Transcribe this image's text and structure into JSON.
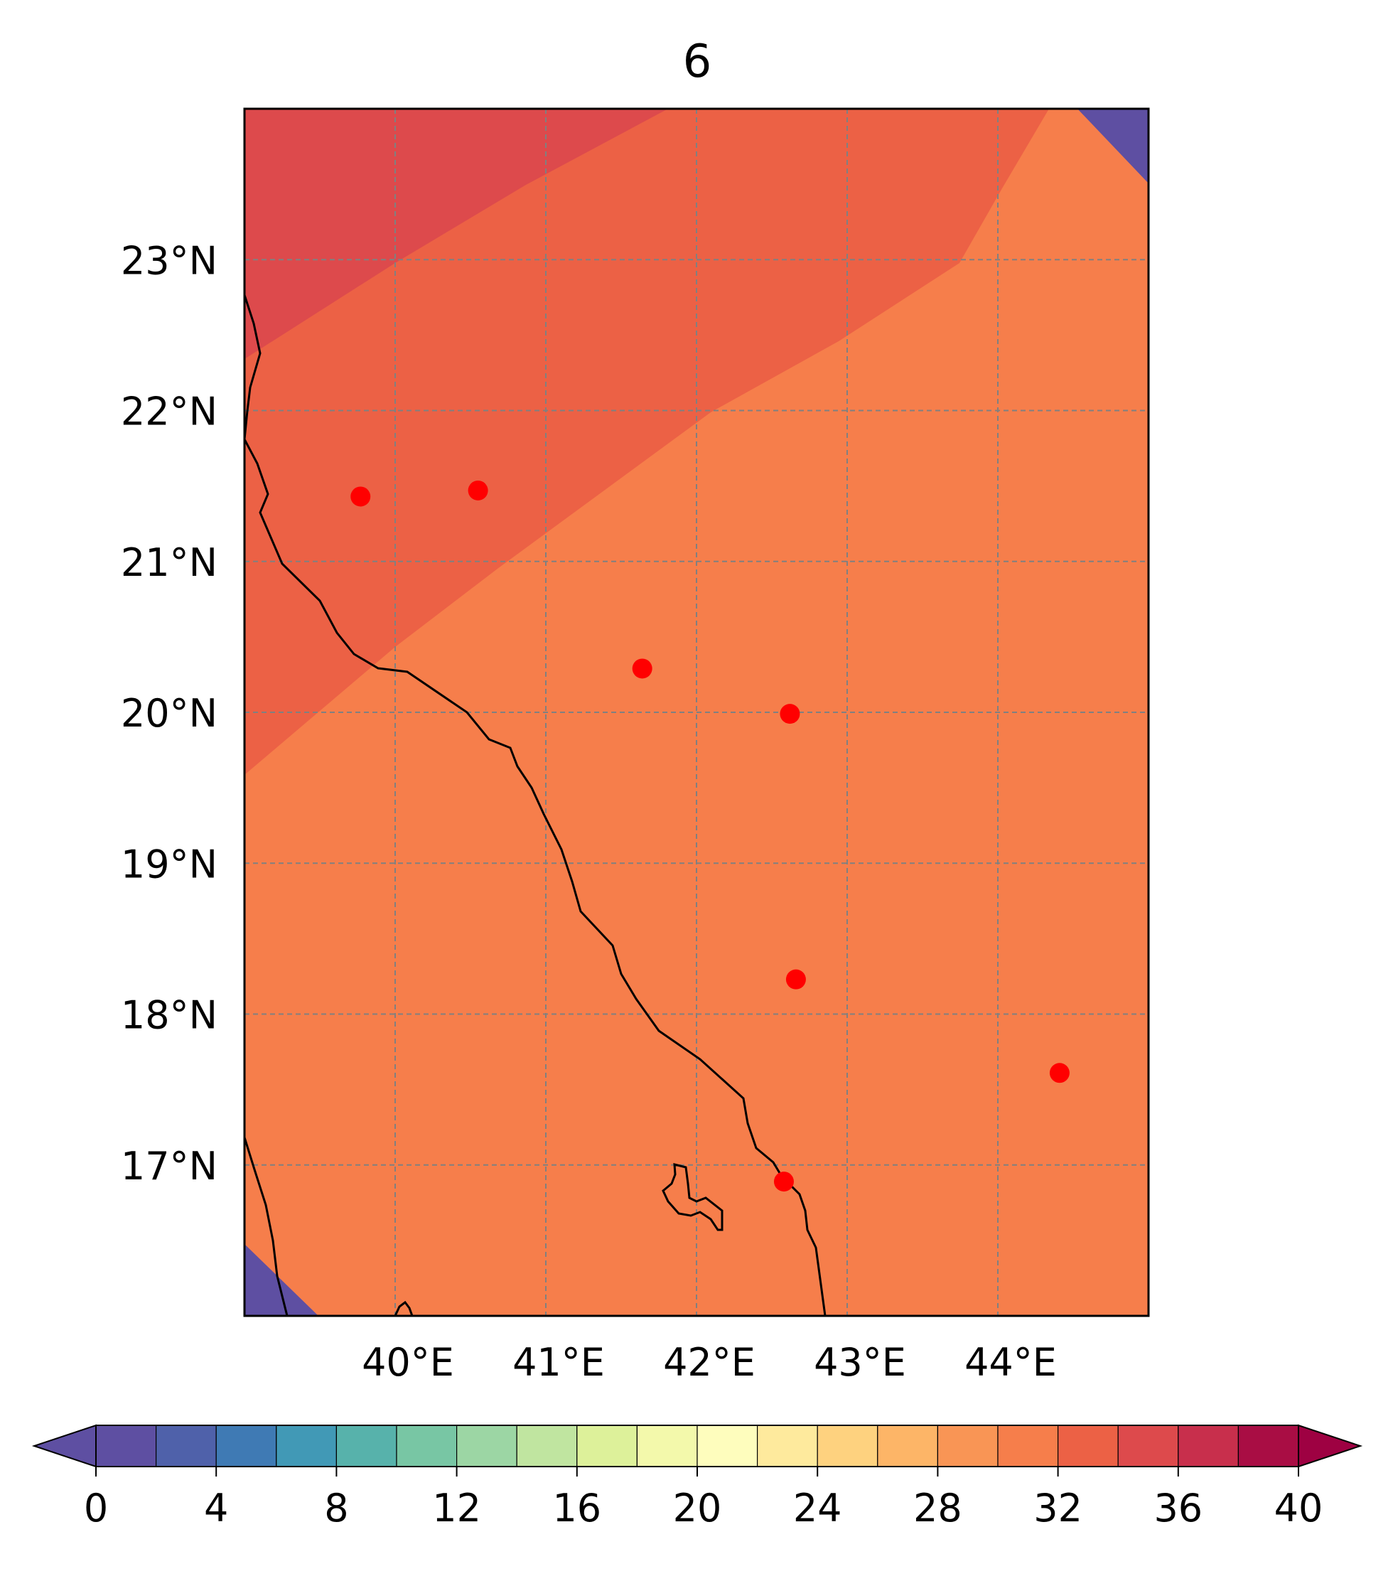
{
  "map": {
    "title": "6",
    "extent": {
      "lon_min": 39.0,
      "lon_max": 45.0,
      "lat_min": 16.0,
      "lat_max": 24.0
    },
    "gridlines": {
      "lon": [
        40,
        41,
        42,
        43,
        44
      ],
      "lat": [
        17,
        18,
        19,
        20,
        21,
        22,
        23
      ],
      "color": "#808080",
      "style": "dashed"
    },
    "lon_labels": [
      "40°E",
      "41°E",
      "42°E",
      "43°E",
      "44°E"
    ],
    "lat_labels": [
      "17°N",
      "18°N",
      "19°N",
      "20°N",
      "21°N",
      "22°N",
      "23°N"
    ],
    "fill_levels": [
      {
        "range": "<0",
        "color": "#5e4fa2"
      },
      {
        "range": "30-32",
        "color": "#f67e4b"
      },
      {
        "range": "32-34",
        "color": "#ec6145"
      },
      {
        "range": "34-36",
        "color": "#dd4a4c"
      }
    ],
    "stations": [
      {
        "lon": 39.77,
        "lat": 21.43
      },
      {
        "lon": 40.55,
        "lat": 21.47
      },
      {
        "lon": 41.64,
        "lat": 20.29
      },
      {
        "lon": 42.62,
        "lat": 19.99
      },
      {
        "lon": 42.66,
        "lat": 18.23
      },
      {
        "lon": 42.58,
        "lat": 16.89
      },
      {
        "lon": 44.41,
        "lat": 17.61
      }
    ],
    "station_color": "#ff0000",
    "coastline_color": "#000000"
  },
  "colorbar": {
    "min": 0,
    "max": 40,
    "step": 2,
    "extend": "both",
    "tick_labels": [
      "0",
      "4",
      "8",
      "12",
      "16",
      "20",
      "24",
      "28",
      "32",
      "36",
      "40"
    ],
    "colors": [
      "#5e4fa2",
      "#4f61aa",
      "#3f7ab4",
      "#4199b6",
      "#57b2ab",
      "#78c6a4",
      "#9cd6a4",
      "#c0e5a0",
      "#ddf19a",
      "#f3f9ab",
      "#fefdbd",
      "#feea9d",
      "#fed27f",
      "#fdb567",
      "#f99555",
      "#f67e4b",
      "#ec6145",
      "#dd4a4c",
      "#c82f4c",
      "#a90d44"
    ],
    "under_color": "#5e4fa2",
    "over_color": "#9e0142"
  }
}
